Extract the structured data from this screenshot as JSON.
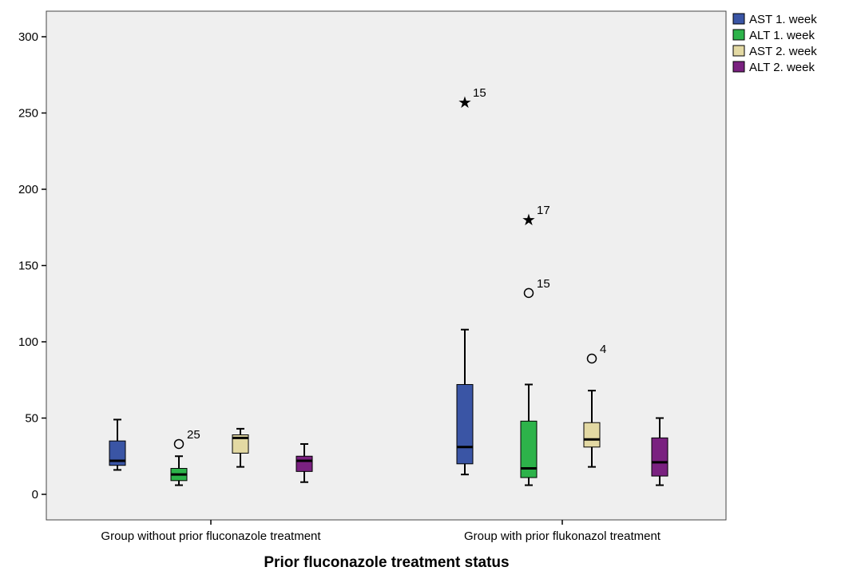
{
  "chart_data": {
    "type": "boxplot",
    "title": "",
    "xlabel": "Prior fluconazole treatment status",
    "ylabel": "",
    "ylim": [
      -15,
      315
    ],
    "yticks": [
      0,
      50,
      100,
      150,
      200,
      250,
      300
    ],
    "grid": false,
    "legend_position": "top-right-outside",
    "categories": [
      "Group without prior fluconazole treatment",
      "Group with prior flukonazol treatment"
    ],
    "series": [
      {
        "name": "AST 1. week",
        "color": "#3a55a5",
        "boxes": [
          {
            "min": 16,
            "q1": 19,
            "median": 22,
            "q3": 35,
            "max": 49,
            "outliers": []
          },
          {
            "min": 13,
            "q1": 20,
            "median": 31,
            "q3": 72,
            "max": 108,
            "outliers": [
              {
                "value": 257,
                "label": "15",
                "kind": "extreme"
              }
            ]
          }
        ]
      },
      {
        "name": "ALT 1. week",
        "color": "#2db34a",
        "boxes": [
          {
            "min": 6,
            "q1": 9,
            "median": 13,
            "q3": 17,
            "max": 25,
            "outliers": [
              {
                "value": 33,
                "label": "25",
                "kind": "outlier"
              }
            ]
          },
          {
            "min": 6,
            "q1": 11,
            "median": 17,
            "q3": 48,
            "max": 72,
            "outliers": [
              {
                "value": 132,
                "label": "15",
                "kind": "outlier"
              },
              {
                "value": 180,
                "label": "17",
                "kind": "extreme"
              }
            ]
          }
        ]
      },
      {
        "name": "AST 2. week",
        "color": "#e3d9a3",
        "boxes": [
          {
            "min": 18,
            "q1": 27,
            "median": 37,
            "q3": 39,
            "max": 43,
            "outliers": []
          },
          {
            "min": 18,
            "q1": 31,
            "median": 36,
            "q3": 47,
            "max": 68,
            "outliers": [
              {
                "value": 89,
                "label": "4",
                "kind": "outlier"
              }
            ]
          }
        ]
      },
      {
        "name": "ALT 2. week",
        "color": "#7a2180",
        "boxes": [
          {
            "min": 8,
            "q1": 15,
            "median": 22,
            "q3": 25,
            "max": 33,
            "outliers": []
          },
          {
            "min": 6,
            "q1": 12,
            "median": 21,
            "q3": 37,
            "max": 50,
            "outliers": []
          }
        ]
      }
    ]
  }
}
